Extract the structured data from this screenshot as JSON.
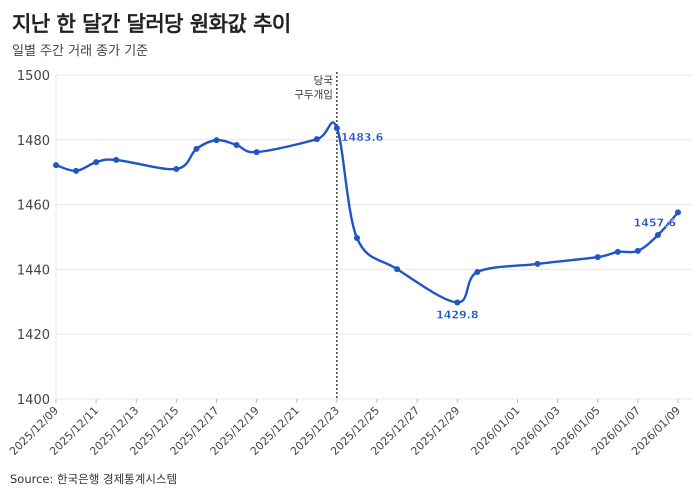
{
  "title": "지난 한 달간 달러당 원화값 추이",
  "subtitle": "일별 주간 거래 종가 기준",
  "source": "Source: 한국은행 경제통계시스템",
  "colors": {
    "line": "#1f55c4",
    "grid": "#e8e8e8",
    "annotation": "#222222"
  },
  "chart_data": {
    "type": "line",
    "title": "지난 한 달간 달러당 원화값 추이",
    "xlabel": "",
    "ylabel": "",
    "ylim": [
      1400,
      1500
    ],
    "yticks": [
      "1400",
      "1420",
      "1440",
      "1460",
      "1480",
      "1500"
    ],
    "xlim": [
      "2025/12/09",
      "2026/01/09"
    ],
    "xticks": [
      "2025/12/09",
      "2025/12/11",
      "2025/12/13",
      "2025/12/15",
      "2025/12/17",
      "2025/12/19",
      "2025/12/21",
      "2025/12/23",
      "2025/12/25",
      "2025/12/27",
      "2025/12/29",
      "2026/01/01",
      "2026/01/03",
      "2026/01/05",
      "2026/01/07",
      "2026/01/09"
    ],
    "grid": "horizontal",
    "series": [
      {
        "x": [
          "2025/12/09",
          "2025/12/10",
          "2025/12/11",
          "2025/12/12",
          "2025/12/15",
          "2025/12/16",
          "2025/12/17",
          "2025/12/18",
          "2025/12/19",
          "2025/12/22",
          "2025/12/23",
          "2025/12/24",
          "2025/12/26",
          "2025/12/29",
          "2025/12/30",
          "2026/01/02",
          "2026/01/05",
          "2026/01/06",
          "2026/01/07",
          "2026/01/08",
          "2026/01/09"
        ],
        "y": [
          1472.2,
          1470.4,
          1473.1,
          1473.8,
          1471.0,
          1477.2,
          1479.9,
          1478.4,
          1476.2,
          1480.2,
          1483.6,
          1449.7,
          1440.1,
          1429.8,
          1439.2,
          1441.7,
          1443.8,
          1445.4,
          1445.7,
          1450.6,
          1457.6
        ]
      }
    ],
    "data_labels": [
      {
        "x": "2025/12/23",
        "text": "1483.6"
      },
      {
        "x": "2025/12/29",
        "text": "1429.8"
      },
      {
        "x": "2026/01/09",
        "text": "1457.6"
      }
    ],
    "annotation": {
      "x": "2025/12/23",
      "lines": [
        "당국",
        "구두개입"
      ],
      "style": "dotted vertical line"
    }
  }
}
